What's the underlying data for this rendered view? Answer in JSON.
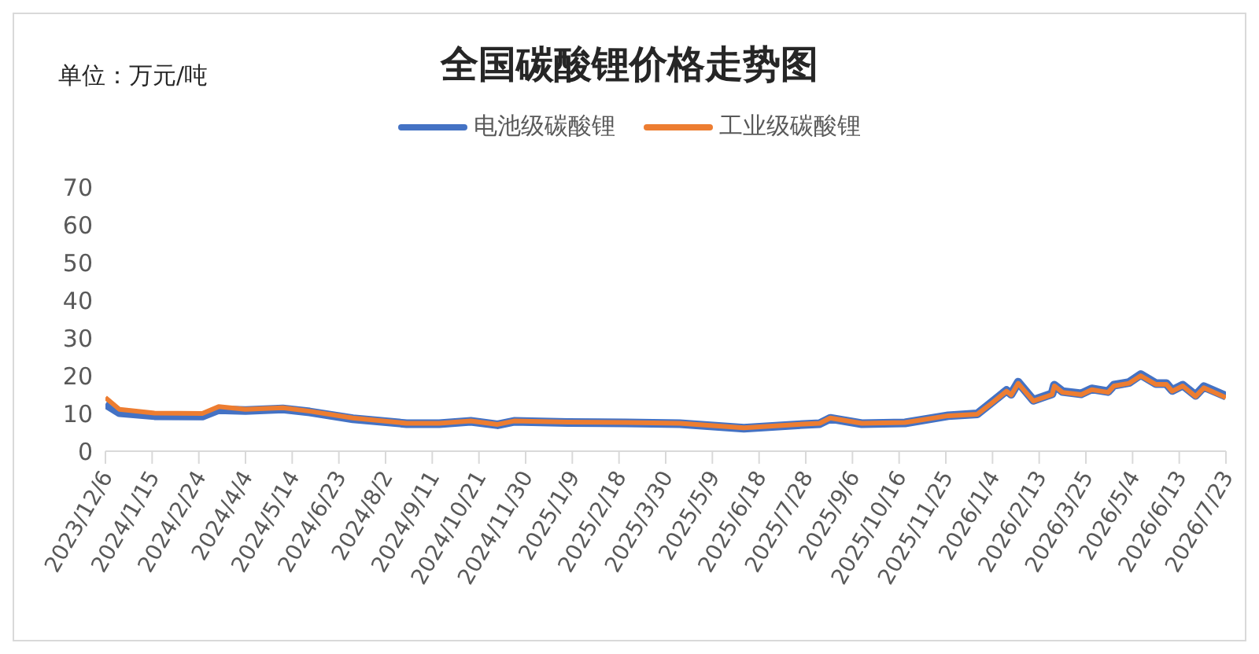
{
  "chart_data": {
    "type": "line",
    "title": "全国碳酸锂价格走势图",
    "ylabel": "单位：万元/吨",
    "x": [
      "2023-12-06",
      "2023-12-18",
      "2024-01-17",
      "2024-02-27",
      "2024-03-12",
      "2024-04-04",
      "2024-05-06",
      "2024-05-29",
      "2024-07-05",
      "2024-08-20",
      "2024-09-17",
      "2024-10-14",
      "2024-11-06",
      "2024-11-20",
      "2025-01-05",
      "2025-02-24",
      "2025-04-11",
      "2025-06-05",
      "2025-07-21",
      "2025-08-09",
      "2025-08-18",
      "2025-09-14",
      "2025-10-21",
      "2025-11-27",
      "2025-12-22",
      "2026-01-02",
      "2026-01-16",
      "2026-01-20",
      "2026-01-26",
      "2026-02-08",
      "2026-02-24",
      "2026-02-26",
      "2026-03-05",
      "2026-03-21",
      "2026-03-30",
      "2026-04-13",
      "2026-04-18",
      "2026-05-01",
      "2026-05-11",
      "2026-05-24",
      "2026-06-02",
      "2026-06-07",
      "2026-06-16",
      "2026-06-27",
      "2026-07-04",
      "2026-07-23"
    ],
    "series": [
      {
        "name": "电池级碳酸锂",
        "color": "#4472c4",
        "values": [
          12.5,
          10.2,
          9.4,
          9.3,
          11.0,
          10.8,
          11.2,
          10.4,
          8.6,
          7.3,
          7.3,
          7.9,
          7.0,
          7.9,
          7.6,
          7.5,
          7.3,
          6.1,
          7.0,
          7.3,
          8.7,
          7.3,
          7.5,
          9.4,
          9.9,
          12.6,
          16.1,
          15.1,
          18.3,
          13.5,
          15.2,
          17.5,
          15.8,
          15.2,
          16.5,
          15.8,
          17.5,
          18.2,
          20.3,
          17.9,
          17.9,
          16.1,
          17.5,
          14.8,
          17.1,
          14.6
        ]
      },
      {
        "name": "工业级碳酸锂",
        "color": "#ed7d31",
        "values": [
          14.2,
          11.1,
          10.1,
          10.0,
          11.8,
          11.1,
          11.5,
          10.6,
          8.8,
          7.4,
          7.4,
          8.0,
          7.1,
          8.0,
          7.7,
          7.6,
          7.4,
          6.2,
          7.1,
          7.4,
          8.8,
          7.4,
          7.6,
          9.4,
          9.8,
          12.4,
          15.9,
          14.9,
          18.0,
          13.3,
          15.0,
          17.3,
          15.6,
          15.0,
          16.3,
          15.6,
          17.3,
          18.0,
          20.0,
          17.7,
          17.7,
          15.9,
          17.3,
          14.5,
          16.8,
          14.2
        ]
      }
    ],
    "xlim": [
      "2023-12-06",
      "2026-07-23"
    ],
    "xticks": [
      {
        "value": "2023-12-06",
        "label": "2023/12/6"
      },
      {
        "value": "2024-01-15",
        "label": "2024/1/15"
      },
      {
        "value": "2024-02-24",
        "label": "2024/2/24"
      },
      {
        "value": "2024-04-04",
        "label": "2024/4/4"
      },
      {
        "value": "2024-05-14",
        "label": "2024/5/14"
      },
      {
        "value": "2024-06-23",
        "label": "2024/6/23"
      },
      {
        "value": "2024-08-02",
        "label": "2024/8/2"
      },
      {
        "value": "2024-09-11",
        "label": "2024/9/11"
      },
      {
        "value": "2024-10-21",
        "label": "2024/10/21"
      },
      {
        "value": "2024-11-30",
        "label": "2024/11/30"
      },
      {
        "value": "2025-01-09",
        "label": "2025/1/9"
      },
      {
        "value": "2025-02-18",
        "label": "2025/2/18"
      },
      {
        "value": "2025-03-30",
        "label": "2025/3/30"
      },
      {
        "value": "2025-05-09",
        "label": "2025/5/9"
      },
      {
        "value": "2025-06-18",
        "label": "2025/6/18"
      },
      {
        "value": "2025-07-28",
        "label": "2025/7/28"
      },
      {
        "value": "2025-09-06",
        "label": "2025/9/6"
      },
      {
        "value": "2025-10-16",
        "label": "2025/10/16"
      },
      {
        "value": "2025-11-25",
        "label": "2025/11/25"
      },
      {
        "value": "2026-01-04",
        "label": "2026/1/4"
      },
      {
        "value": "2026-02-13",
        "label": "2026/2/13"
      },
      {
        "value": "2026-03-25",
        "label": "2026/3/25"
      },
      {
        "value": "2026-05-04",
        "label": "2026/5/4"
      },
      {
        "value": "2026-06-13",
        "label": "2026/6/13"
      },
      {
        "value": "2026-07-23",
        "label": "2026/7/23"
      }
    ],
    "ylim": [
      0,
      70
    ],
    "yticks": [
      0,
      10,
      20,
      30,
      40,
      50,
      60,
      70
    ],
    "grid": false,
    "legend": "top",
    "marker": "none",
    "line_style": "solid"
  }
}
